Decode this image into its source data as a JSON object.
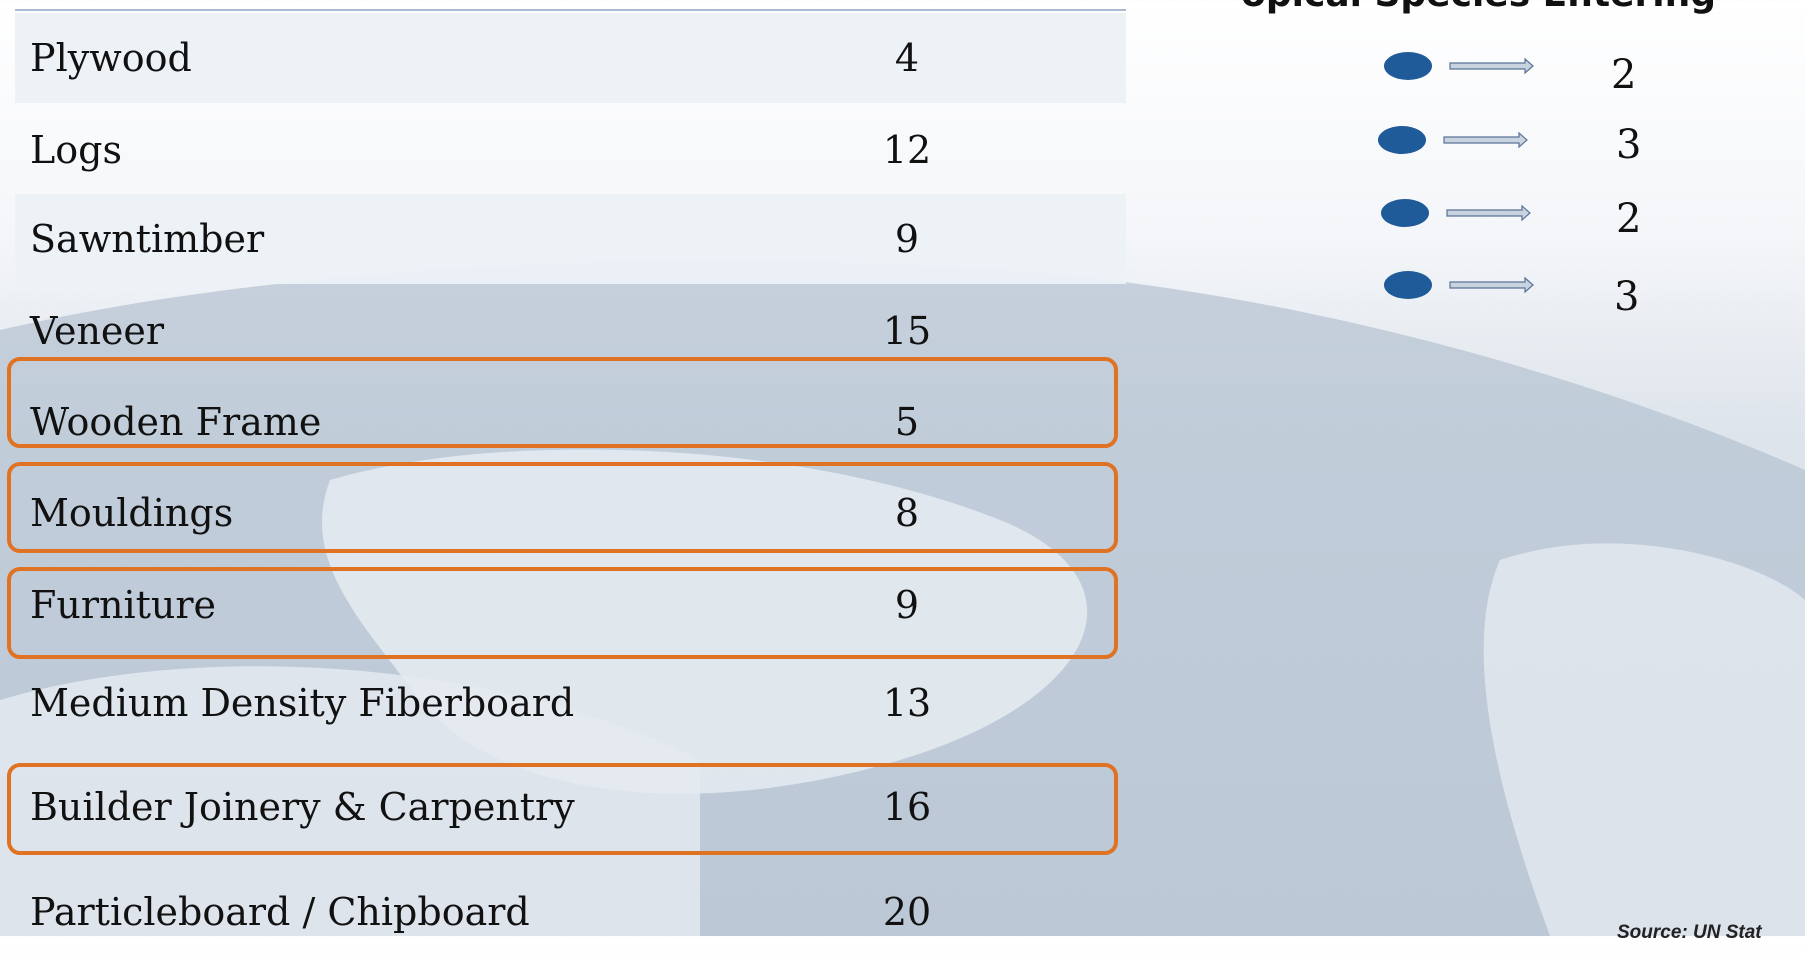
{
  "header": {
    "title": "opical Species Entering"
  },
  "table": {
    "rows": [
      [
        "Plywood",
        4
      ],
      [
        "Logs",
        12
      ],
      [
        "Sawntimber",
        9
      ],
      [
        "Veneer",
        15
      ],
      [
        "Wooden Frame",
        5
      ],
      [
        "Mouldings",
        8
      ],
      [
        "Furniture",
        9
      ],
      [
        "Medium Density Fiberboard",
        13
      ],
      [
        "Builder Joinery & Carpentry",
        16
      ],
      [
        "Particleboard / Chipboard",
        20
      ]
    ]
  },
  "species_counts": [
    2,
    3,
    2,
    3
  ],
  "source": "Source: UN Stat"
}
